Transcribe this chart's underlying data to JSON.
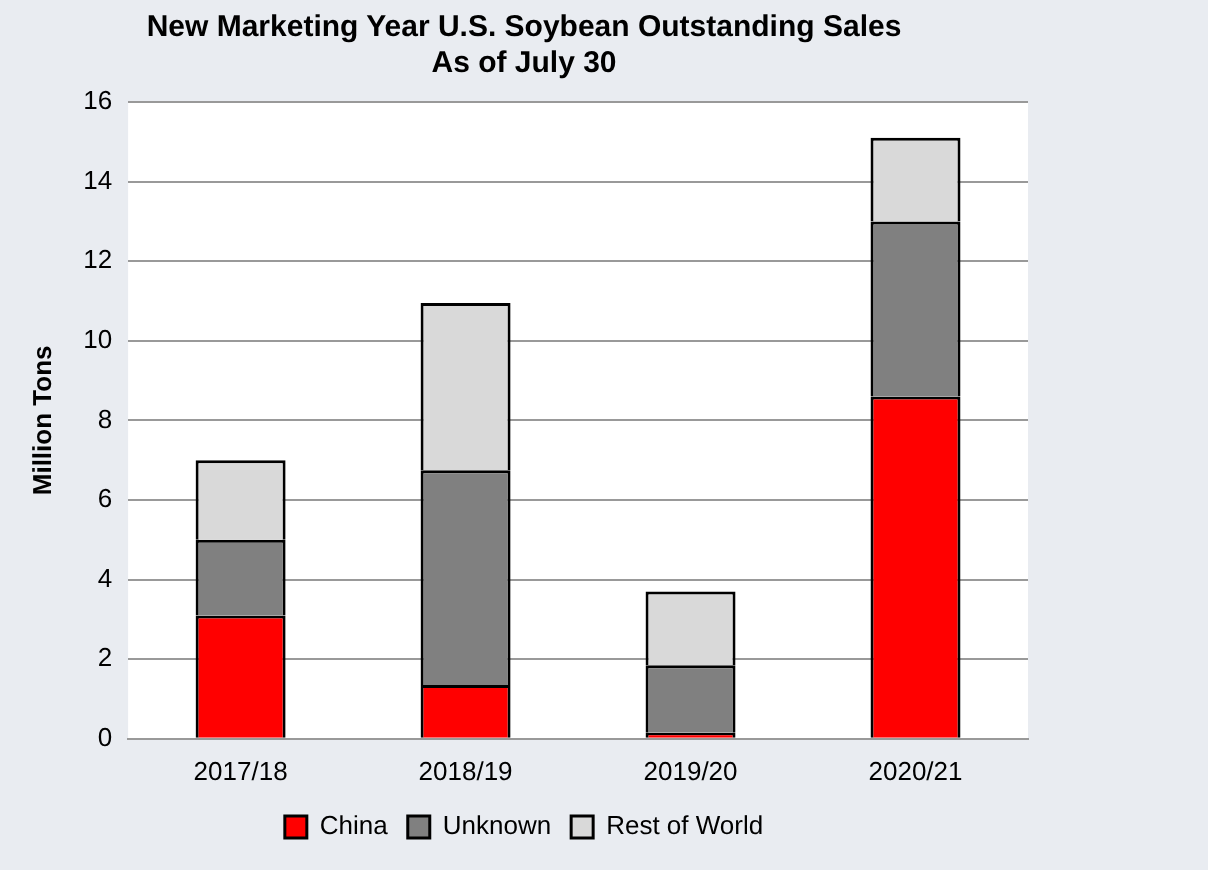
{
  "chart_data": {
    "type": "bar",
    "title": "New Marketing Year U.S. Soybean Outstanding Sales",
    "subtitle": "As of July 30",
    "ylabel": "Million Tons",
    "categories": [
      "2017/18",
      "2018/19",
      "2019/20",
      "2020/21"
    ],
    "stacked": true,
    "series": [
      {
        "name": "China",
        "color": "#ff0000",
        "values": [
          3.1,
          1.35,
          0.15,
          8.6
        ]
      },
      {
        "name": "Unknown",
        "color": "#808080",
        "values": [
          1.9,
          5.4,
          1.7,
          4.4
        ]
      },
      {
        "name": "Rest of World",
        "color": "#d9d9d9",
        "values": [
          2.0,
          4.2,
          1.85,
          2.1
        ]
      }
    ],
    "ylim": [
      0,
      16
    ],
    "yticks": [
      0,
      2,
      4,
      6,
      8,
      10,
      12,
      14,
      16
    ],
    "grid": "y",
    "legend": "bottom"
  }
}
